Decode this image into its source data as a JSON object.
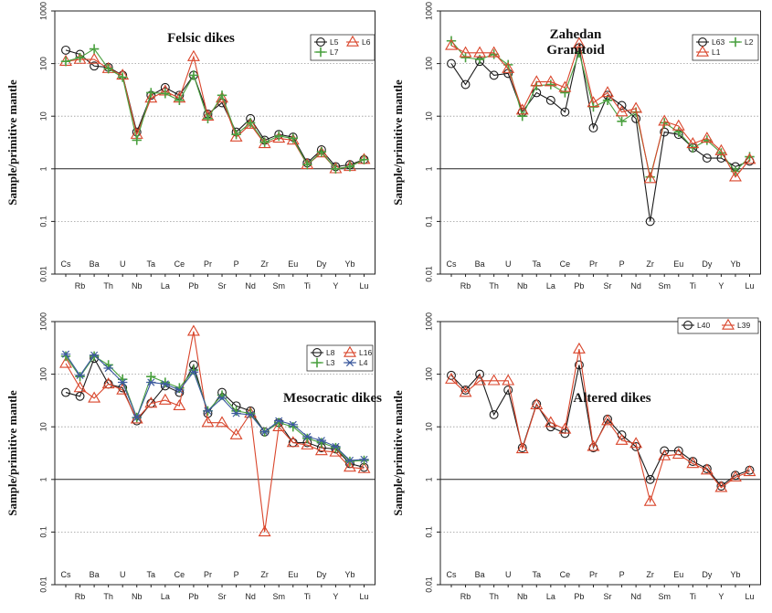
{
  "figure": {
    "elements": [
      "Cs",
      "Rb",
      "Ba",
      "Th",
      "U",
      "Nb",
      "Ta",
      "La",
      "Ce",
      "Pb",
      "Pr",
      "Sr",
      "P",
      "Nd",
      "Zr",
      "Sm",
      "Eu",
      "Ti",
      "Dy",
      "Y",
      "Yb",
      "Lu"
    ],
    "ylabel": "Sample/primitive mantle",
    "y_ticks": [
      "0.01",
      "0.1",
      "1",
      "10",
      "100",
      "1000"
    ]
  },
  "chart_data": [
    {
      "type": "line",
      "title": "Felsic dikes",
      "ylabel": "Sample/primitive mantle",
      "yscale": "log",
      "ylim": [
        0.01,
        1000
      ],
      "grid": "dotted at 0.1, 10, 100; solid at 1",
      "legend_position": "top-right",
      "categories": [
        "Cs",
        "Rb",
        "Ba",
        "Th",
        "U",
        "Nb",
        "Ta",
        "La",
        "Ce",
        "Pb",
        "Pr",
        "Sr",
        "P",
        "Nd",
        "Zr",
        "Sm",
        "Eu",
        "Ti",
        "Dy",
        "Y",
        "Yb",
        "Lu"
      ],
      "series": [
        {
          "name": "L5",
          "color": "#1a1a1a",
          "marker": "circle",
          "values": [
            180,
            150,
            90,
            85,
            60,
            5,
            25,
            35,
            25,
            60,
            11,
            18,
            5,
            9,
            3.5,
            4.5,
            4,
            1.3,
            2.3,
            1.1,
            1.2,
            1.5
          ]
        },
        {
          "name": "L6",
          "color": "#d9452b",
          "marker": "triangle",
          "values": [
            110,
            120,
            120,
            80,
            60,
            4.5,
            22,
            30,
            22,
            135,
            10,
            22,
            4,
            7,
            3,
            3.8,
            3.5,
            1.2,
            2,
            1,
            1.1,
            1.5
          ]
        },
        {
          "name": "L7",
          "color": "#4aa03f",
          "marker": "plus",
          "values": [
            110,
            130,
            190,
            80,
            55,
            3.5,
            28,
            27,
            20,
            60,
            9,
            25,
            4.5,
            7.5,
            3.2,
            4.2,
            3.8,
            1.2,
            2.1,
            1,
            1.1,
            1.5
          ]
        }
      ]
    },
    {
      "type": "line",
      "title": "Zahedan Granitoid",
      "title_lines": [
        "Zahedan",
        "Granitoid"
      ],
      "ylabel": "Sample/primitive mantle",
      "yscale": "log",
      "ylim": [
        0.01,
        1000
      ],
      "grid": "dotted at 0.1, 10, 100; solid at 1",
      "legend_position": "top-right",
      "categories": [
        "Cs",
        "Rb",
        "Ba",
        "Th",
        "U",
        "Nb",
        "Ta",
        "La",
        "Ce",
        "Pb",
        "Pr",
        "Sr",
        "P",
        "Nd",
        "Zr",
        "Sm",
        "Eu",
        "Ti",
        "Dy",
        "Y",
        "Yb",
        "Lu"
      ],
      "series": [
        {
          "name": "L63",
          "color": "#1a1a1a",
          "marker": "circle",
          "values": [
            100,
            40,
            110,
            60,
            65,
            12,
            28,
            20,
            12,
            200,
            6,
            25,
            16,
            9,
            0.1,
            5,
            4.5,
            2.5,
            1.6,
            1.6,
            1.1,
            1.4
          ]
        },
        {
          "name": "L2",
          "color": "#4aa03f",
          "marker": "plus",
          "values": [
            270,
            130,
            120,
            150,
            95,
            10,
            38,
            40,
            28,
            160,
            15,
            20,
            8,
            12,
            0.7,
            7.5,
            5,
            2.5,
            3.5,
            2,
            0.9,
            1.7
          ]
        },
        {
          "name": "L1",
          "color": "#d9452b",
          "marker": "triangle",
          "values": [
            220,
            160,
            160,
            160,
            80,
            13,
            45,
            45,
            35,
            240,
            18,
            28,
            12,
            14,
            0.65,
            8,
            6.5,
            3,
            3.8,
            2.2,
            0.7,
            1.5
          ]
        }
      ]
    },
    {
      "type": "line",
      "title": "Mesocratic dikes",
      "ylabel": "Sample/primitive mantle",
      "yscale": "log",
      "ylim": [
        0.01,
        1000
      ],
      "grid": "dotted at 0.1, 10, 100; solid at 1",
      "legend_position": "top-right",
      "categories": [
        "Cs",
        "Rb",
        "Ba",
        "Th",
        "U",
        "Nb",
        "Ta",
        "La",
        "Ce",
        "Pb",
        "Pr",
        "Sr",
        "P",
        "Nd",
        "Zr",
        "Sm",
        "Eu",
        "Ti",
        "Dy",
        "Y",
        "Yb",
        "Lu"
      ],
      "series": [
        {
          "name": "L8",
          "color": "#1a1a1a",
          "marker": "circle",
          "values": [
            45,
            38,
            200,
            65,
            55,
            13,
            28,
            60,
            45,
            150,
            18,
            45,
            25,
            20,
            8,
            12,
            5,
            5,
            4,
            3.8,
            2,
            1.7
          ]
        },
        {
          "name": "L16",
          "color": "#d9452b",
          "marker": "triangle",
          "values": [
            160,
            55,
            35,
            65,
            50,
            14,
            28,
            32,
            25,
            650,
            12,
            12,
            7,
            18,
            0.1,
            10,
            5,
            4.5,
            3.5,
            3.3,
            1.7,
            1.6
          ]
        },
        {
          "name": "L3",
          "color": "#4aa03f",
          "marker": "plus",
          "values": [
            220,
            90,
            220,
            150,
            80,
            15,
            90,
            70,
            55,
            120,
            20,
            40,
            20,
            18,
            8,
            12,
            10,
            6,
            5,
            4,
            2.2,
            2.3
          ]
        },
        {
          "name": "L4",
          "color": "#3c5a9e",
          "marker": "star",
          "values": [
            240,
            95,
            230,
            130,
            70,
            15,
            70,
            65,
            50,
            110,
            20,
            35,
            18,
            17,
            8,
            13,
            11,
            6.5,
            5.5,
            4.2,
            2.3,
            2.4
          ]
        }
      ]
    },
    {
      "type": "line",
      "title": "Altered dikes",
      "ylabel": "Sample/primitive mantle",
      "yscale": "log",
      "ylim": [
        0.01,
        1000
      ],
      "grid": "dotted at 0.1, 10, 100; solid at 1",
      "legend_position": "top-right",
      "categories": [
        "Cs",
        "Rb",
        "Ba",
        "Th",
        "U",
        "Nb",
        "Ta",
        "La",
        "Ce",
        "Pb",
        "Pr",
        "Sr",
        "P",
        "Nd",
        "Zr",
        "Sm",
        "Eu",
        "Ti",
        "Dy",
        "Y",
        "Yb",
        "Lu"
      ],
      "series": [
        {
          "name": "L40",
          "color": "#1a1a1a",
          "marker": "circle",
          "values": [
            95,
            50,
            100,
            17,
            50,
            4,
            27,
            10,
            7.5,
            150,
            4,
            14,
            7,
            4.2,
            1,
            3.5,
            3.5,
            2.2,
            1.6,
            0.75,
            1.2,
            1.5
          ]
        },
        {
          "name": "L39",
          "color": "#d9452b",
          "marker": "triangle",
          "values": [
            80,
            45,
            75,
            75,
            75,
            3.8,
            26,
            12,
            9,
            300,
            4.2,
            13,
            5.5,
            4.8,
            0.38,
            2.8,
            3,
            2,
            1.5,
            0.7,
            1.1,
            1.4
          ]
        }
      ]
    }
  ]
}
